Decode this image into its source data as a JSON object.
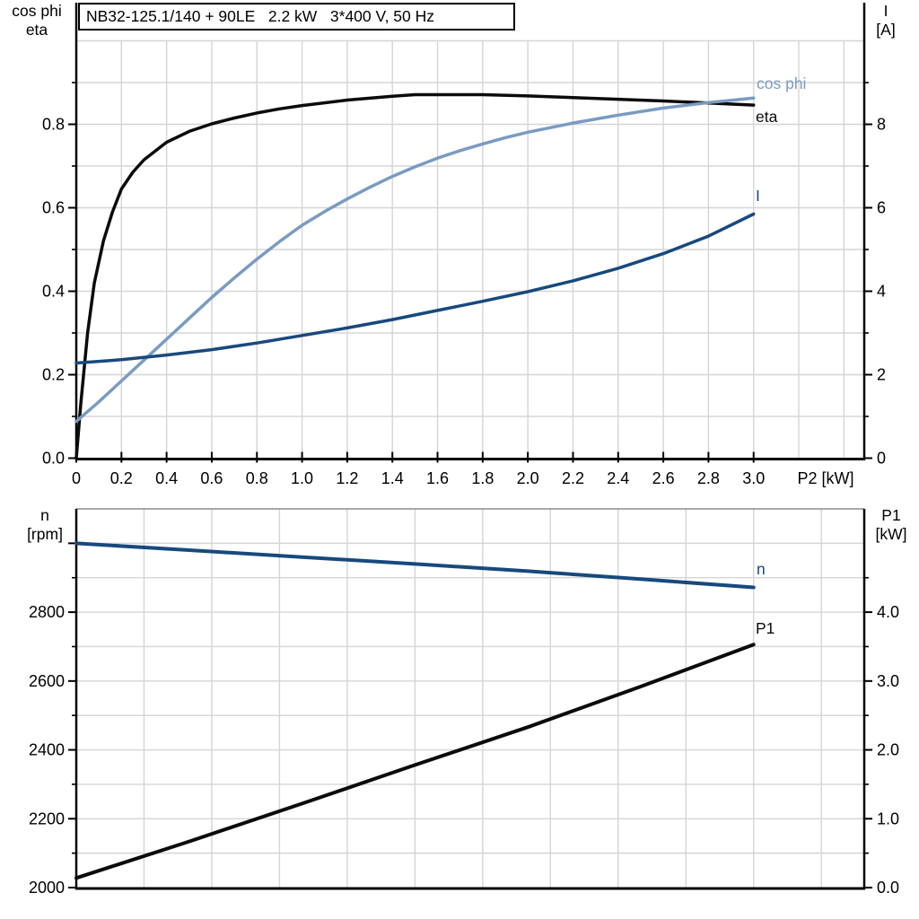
{
  "colors": {
    "grid": "#D5D5D5",
    "bottom_chart_top_edge": "#8C8C8C",
    "axis": "#000000",
    "text": "#000000",
    "eta_black": "#0B0B0B",
    "cos_phi_steel_blue": "#7A9BC2",
    "current_dark_blue": "#17497D",
    "speed_dark_blue": "#17497D",
    "p1_black": "#0B0B0B"
  },
  "chart_data": [
    {
      "id": "motor-electrical-chart",
      "type": "line",
      "title": "NB32-125.1/140 + 90LE   2.2 kW   3*400 V, 50 Hz",
      "x_axis": {
        "label": "P2 [kW]",
        "range": [
          0,
          3.49
        ],
        "ticks": [
          {
            "v": 0,
            "t": "0"
          },
          {
            "v": 0.2,
            "t": "0.2"
          },
          {
            "v": 0.4,
            "t": "0.4"
          },
          {
            "v": 0.6,
            "t": "0.6"
          },
          {
            "v": 0.8,
            "t": "0.8"
          },
          {
            "v": 1.0,
            "t": "1.0"
          },
          {
            "v": 1.2,
            "t": "1.2"
          },
          {
            "v": 1.4,
            "t": "1.4"
          },
          {
            "v": 1.6,
            "t": "1.6"
          },
          {
            "v": 1.8,
            "t": "1.8"
          },
          {
            "v": 2.0,
            "t": "2.0"
          },
          {
            "v": 2.2,
            "t": "2.2"
          },
          {
            "v": 2.4,
            "t": "2.4"
          },
          {
            "v": 2.6,
            "t": "2.6"
          },
          {
            "v": 2.8,
            "t": "2.8"
          },
          {
            "v": 3.0,
            "t": "3.0"
          }
        ],
        "grid_values": [
          0.2,
          0.4,
          0.6,
          0.8,
          1.0,
          1.2,
          1.4,
          1.6,
          1.8,
          2.0,
          2.2,
          2.4,
          2.6,
          2.8,
          3.0,
          3.2,
          3.4
        ]
      },
      "left_axis": {
        "title": [
          "cos phi",
          "eta"
        ],
        "range": [
          0,
          1.0
        ],
        "ticks": [
          {
            "v": 0,
            "t": "0.0"
          },
          {
            "v": 0.2,
            "t": "0.2"
          },
          {
            "v": 0.4,
            "t": "0.4"
          },
          {
            "v": 0.6,
            "t": "0.6"
          },
          {
            "v": 0.8,
            "t": "0.8"
          }
        ],
        "minor_ticks": [
          0.1,
          0.3,
          0.5,
          0.7,
          0.9
        ],
        "grid_values": [
          0.1,
          0.2,
          0.3,
          0.4,
          0.5,
          0.6,
          0.7,
          0.8,
          0.9,
          1.0
        ]
      },
      "right_axis": {
        "title": [
          "I",
          "[A]"
        ],
        "range": [
          0,
          10
        ],
        "ticks": [
          {
            "v": 0,
            "t": "0"
          },
          {
            "v": 2,
            "t": "2"
          },
          {
            "v": 4,
            "t": "4"
          },
          {
            "v": 6,
            "t": "6"
          },
          {
            "v": 8,
            "t": "8"
          }
        ],
        "minor_ticks": [
          1,
          3,
          5,
          7,
          9
        ]
      },
      "series": [
        {
          "name": "eta",
          "label": "eta",
          "axis": "left",
          "color": "#0B0B0B",
          "points": [
            [
              0,
              0
            ],
            [
              0.02,
              0.13
            ],
            [
              0.05,
              0.3
            ],
            [
              0.08,
              0.42
            ],
            [
              0.12,
              0.52
            ],
            [
              0.16,
              0.59
            ],
            [
              0.2,
              0.645
            ],
            [
              0.25,
              0.685
            ],
            [
              0.3,
              0.715
            ],
            [
              0.4,
              0.757
            ],
            [
              0.5,
              0.783
            ],
            [
              0.6,
              0.801
            ],
            [
              0.7,
              0.815
            ],
            [
              0.8,
              0.827
            ],
            [
              0.9,
              0.837
            ],
            [
              1.0,
              0.845
            ],
            [
              1.2,
              0.858
            ],
            [
              1.4,
              0.867
            ],
            [
              1.5,
              0.871
            ],
            [
              1.6,
              0.871
            ],
            [
              1.8,
              0.871
            ],
            [
              2.0,
              0.868
            ],
            [
              2.2,
              0.864
            ],
            [
              2.4,
              0.86
            ],
            [
              2.6,
              0.856
            ],
            [
              2.8,
              0.851
            ],
            [
              3.0,
              0.846
            ]
          ]
        },
        {
          "name": "cos phi",
          "label": "cos phi",
          "axis": "left",
          "color": "#7A9BC2",
          "points": [
            [
              0,
              0.088
            ],
            [
              0.1,
              0.135
            ],
            [
              0.2,
              0.185
            ],
            [
              0.3,
              0.235
            ],
            [
              0.4,
              0.285
            ],
            [
              0.5,
              0.335
            ],
            [
              0.6,
              0.385
            ],
            [
              0.7,
              0.432
            ],
            [
              0.8,
              0.477
            ],
            [
              0.9,
              0.519
            ],
            [
              1.0,
              0.558
            ],
            [
              1.1,
              0.591
            ],
            [
              1.2,
              0.621
            ],
            [
              1.3,
              0.649
            ],
            [
              1.4,
              0.675
            ],
            [
              1.5,
              0.698
            ],
            [
              1.6,
              0.719
            ],
            [
              1.7,
              0.737
            ],
            [
              1.8,
              0.753
            ],
            [
              1.9,
              0.768
            ],
            [
              2.0,
              0.781
            ],
            [
              2.2,
              0.803
            ],
            [
              2.4,
              0.822
            ],
            [
              2.6,
              0.839
            ],
            [
              2.8,
              0.852
            ],
            [
              3.0,
              0.863
            ]
          ]
        },
        {
          "name": "I",
          "label": "I",
          "axis": "right",
          "color": "#17497D",
          "points": [
            [
              0,
              2.28
            ],
            [
              0.2,
              2.36
            ],
            [
              0.4,
              2.47
            ],
            [
              0.6,
              2.6
            ],
            [
              0.8,
              2.76
            ],
            [
              1.0,
              2.94
            ],
            [
              1.2,
              3.12
            ],
            [
              1.4,
              3.32
            ],
            [
              1.6,
              3.54
            ],
            [
              1.8,
              3.76
            ],
            [
              2.0,
              3.99
            ],
            [
              2.2,
              4.25
            ],
            [
              2.4,
              4.55
            ],
            [
              2.6,
              4.9
            ],
            [
              2.8,
              5.32
            ],
            [
              3.0,
              5.85
            ]
          ]
        }
      ]
    },
    {
      "id": "speed-power-chart",
      "type": "line",
      "x_axis": {
        "label": "",
        "range": [
          0,
          3.49
        ],
        "ticks": [],
        "grid_values": [
          0.3,
          0.6,
          0.9,
          1.2,
          1.5,
          1.8,
          2.1,
          2.4,
          2.7,
          3.0,
          3.3
        ]
      },
      "left_axis": {
        "title": [
          "n",
          "[rpm]"
        ],
        "range": [
          2000,
          3100
        ],
        "ticks": [
          {
            "v": 2000,
            "t": "2000"
          },
          {
            "v": 2200,
            "t": "2200"
          },
          {
            "v": 2400,
            "t": "2400"
          },
          {
            "v": 2600,
            "t": "2600"
          },
          {
            "v": 2800,
            "t": "2800"
          }
        ],
        "extra_ticks": [
          3000
        ],
        "minor_ticks": [
          2100,
          2300,
          2500,
          2700,
          2900
        ],
        "grid_values": [
          2100,
          2200,
          2300,
          2400,
          2500,
          2600,
          2700,
          2800,
          2900,
          3000,
          3100
        ]
      },
      "right_axis": {
        "title": [
          "P1",
          "[kW]"
        ],
        "range": [
          0,
          5.5
        ],
        "ticks": [
          {
            "v": 0,
            "t": "0.0"
          },
          {
            "v": 1,
            "t": "1.0"
          },
          {
            "v": 2,
            "t": "2.0"
          },
          {
            "v": 3,
            "t": "3.0"
          },
          {
            "v": 4,
            "t": "4.0"
          }
        ],
        "minor_ticks": [
          0.5,
          1.5,
          2.5,
          3.5,
          4.5
        ]
      },
      "series": [
        {
          "name": "n",
          "label": "n",
          "axis": "left",
          "color": "#17497D",
          "points": [
            [
              0,
              3000
            ],
            [
              0.5,
              2980
            ],
            [
              1.0,
              2960
            ],
            [
              1.5,
              2940
            ],
            [
              2.0,
              2919
            ],
            [
              2.5,
              2896
            ],
            [
              3.0,
              2872
            ]
          ]
        },
        {
          "name": "P1",
          "label": "P1",
          "axis": "right",
          "color": "#0B0B0B",
          "points": [
            [
              0,
              0.14
            ],
            [
              0.5,
              0.67
            ],
            [
              1.0,
              1.22
            ],
            [
              1.5,
              1.78
            ],
            [
              2.0,
              2.33
            ],
            [
              2.5,
              2.92
            ],
            [
              3.0,
              3.53
            ]
          ]
        }
      ]
    }
  ]
}
